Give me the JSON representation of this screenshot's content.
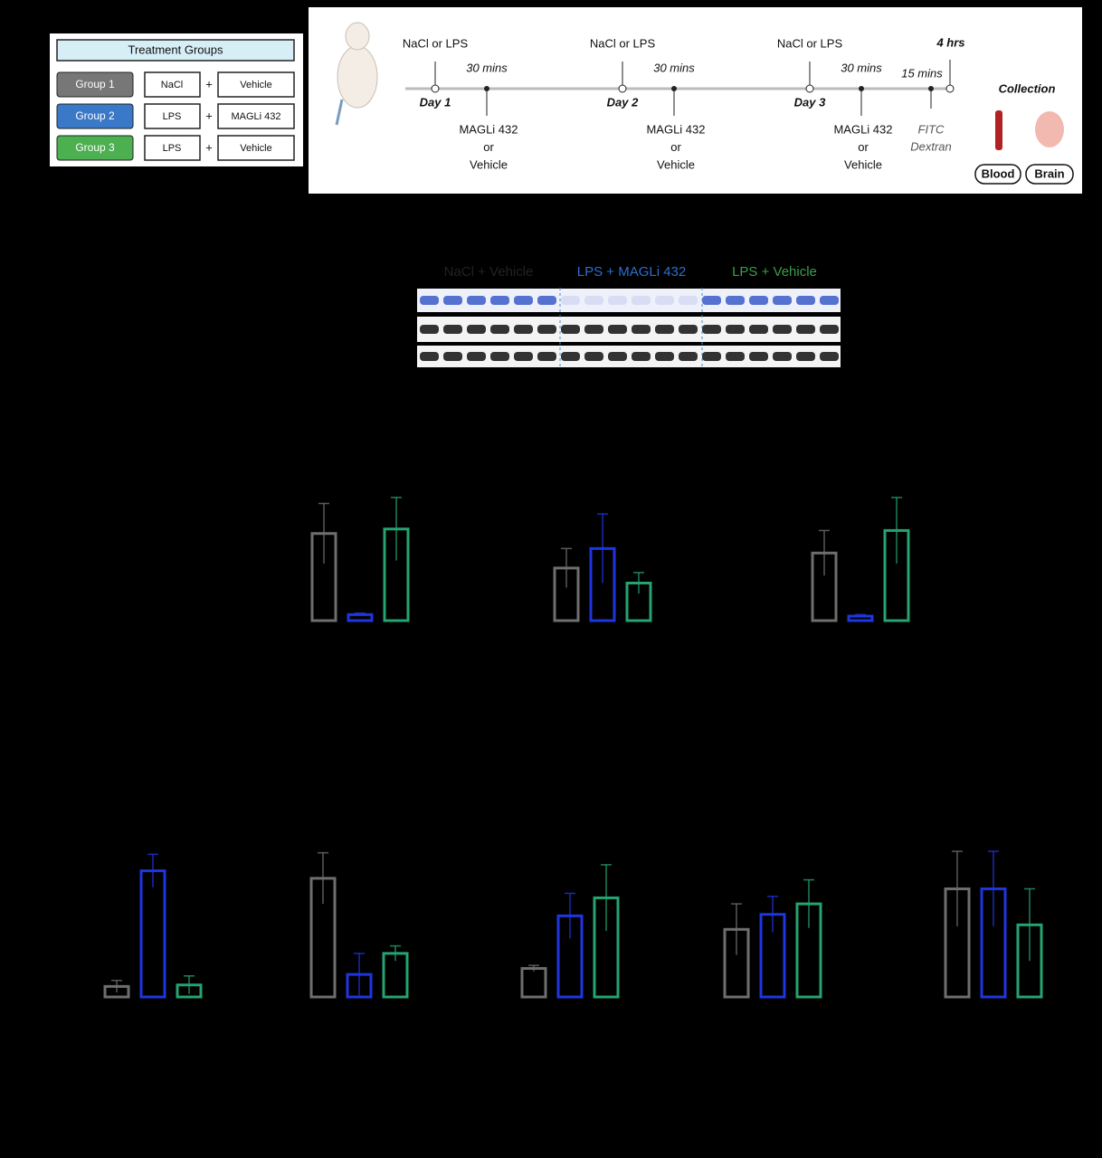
{
  "treatment_groups": {
    "title": "Treatment Groups",
    "rows": [
      {
        "group": "Group 1",
        "drug": "NaCl",
        "plus": "+",
        "treatment": "Vehicle"
      },
      {
        "group": "Group 2",
        "drug": "LPS",
        "plus": "+",
        "treatment": "MAGLi 432"
      },
      {
        "group": "Group 3",
        "drug": "LPS",
        "plus": "+",
        "treatment": "Vehicle"
      }
    ]
  },
  "timeline": {
    "days": [
      {
        "injection": "NaCl or LPS",
        "day": "Day 1",
        "delay": "30 mins",
        "drug": "MAGLi 432",
        "or": "or",
        "vehicle": "Vehicle"
      },
      {
        "injection": "NaCl or LPS",
        "day": "Day 2",
        "delay": "30 mins",
        "drug": "MAGLi 432",
        "or": "or",
        "vehicle": "Vehicle"
      },
      {
        "injection": "NaCl or LPS",
        "day": "Day 3",
        "delay": "30 mins",
        "drug": "MAGLi 432",
        "or": "or",
        "vehicle": "Vehicle"
      }
    ],
    "delay_final": "15 mins",
    "end": "4 hrs",
    "tracer": [
      "FITC",
      "Dextran"
    ],
    "collection": "Collection",
    "samples": [
      "Blood",
      "Brain"
    ]
  },
  "blot": {
    "groups": [
      "NaCl + Vehicle",
      "LPS + MAGLi 432",
      "LPS + Vehicle"
    ]
  },
  "chart_data": [
    {
      "type": "bar",
      "values": [
        58,
        4,
        61
      ],
      "errors": [
        20,
        1,
        21
      ],
      "colors": [
        "#6e6e6e",
        "#1f35e0",
        "#25a370"
      ],
      "ylim": [
        0,
        100
      ]
    },
    {
      "type": "bar",
      "values": [
        35,
        48,
        25
      ],
      "errors": [
        13,
        23,
        7
      ],
      "colors": [
        "#6e6e6e",
        "#1f35e0",
        "#25a370"
      ],
      "ylim": [
        0,
        100
      ]
    },
    {
      "type": "bar",
      "values": [
        45,
        3,
        60
      ],
      "errors": [
        15,
        1,
        22
      ],
      "colors": [
        "#6e6e6e",
        "#1f35e0",
        "#25a370"
      ],
      "ylim": [
        0,
        100
      ]
    },
    {
      "type": "bar",
      "values": [
        7,
        84,
        8
      ],
      "errors": [
        4,
        11,
        6
      ],
      "colors": [
        "#6e6e6e",
        "#1f35e0",
        "#25a370"
      ],
      "ylim": [
        0,
        100
      ]
    },
    {
      "type": "bar",
      "values": [
        79,
        15,
        29
      ],
      "errors": [
        17,
        14,
        5
      ],
      "colors": [
        "#6e6e6e",
        "#1f35e0",
        "#25a370"
      ],
      "ylim": [
        0,
        100
      ]
    },
    {
      "type": "bar",
      "values": [
        19,
        54,
        66
      ],
      "errors": [
        2,
        15,
        22
      ],
      "colors": [
        "#6e6e6e",
        "#1f35e0",
        "#25a370"
      ],
      "ylim": [
        0,
        100
      ]
    },
    {
      "type": "bar",
      "values": [
        45,
        55,
        62
      ],
      "errors": [
        17,
        12,
        16
      ],
      "colors": [
        "#6e6e6e",
        "#1f35e0",
        "#25a370"
      ],
      "ylim": [
        0,
        100
      ]
    },
    {
      "type": "bar",
      "values": [
        72,
        72,
        48
      ],
      "errors": [
        25,
        25,
        24
      ],
      "colors": [
        "#6e6e6e",
        "#1f35e0",
        "#25a370"
      ],
      "ylim": [
        0,
        100
      ]
    }
  ]
}
